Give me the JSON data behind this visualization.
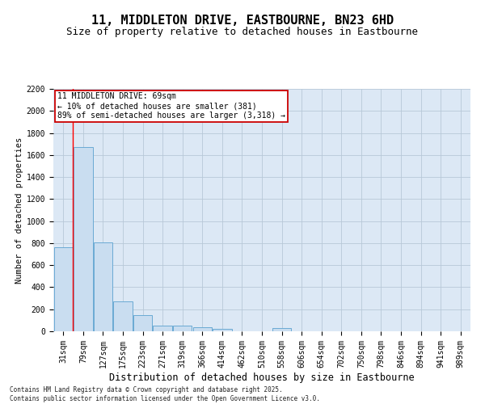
{
  "title": "11, MIDDLETON DRIVE, EASTBOURNE, BN23 6HD",
  "subtitle": "Size of property relative to detached houses in Eastbourne",
  "xlabel": "Distribution of detached houses by size in Eastbourne",
  "ylabel": "Number of detached properties",
  "categories": [
    "31sqm",
    "79sqm",
    "127sqm",
    "175sqm",
    "223sqm",
    "271sqm",
    "319sqm",
    "366sqm",
    "414sqm",
    "462sqm",
    "510sqm",
    "558sqm",
    "606sqm",
    "654sqm",
    "702sqm",
    "750sqm",
    "798sqm",
    "846sqm",
    "894sqm",
    "941sqm",
    "989sqm"
  ],
  "values": [
    760,
    1670,
    810,
    275,
    150,
    55,
    50,
    40,
    25,
    0,
    0,
    30,
    0,
    0,
    0,
    0,
    0,
    0,
    0,
    0,
    0
  ],
  "bar_color": "#c9ddf0",
  "bar_edge_color": "#6aaad4",
  "plot_bg_color": "#dce8f5",
  "background_color": "#ffffff",
  "grid_color": "#b8c8d8",
  "annotation_text": "11 MIDDLETON DRIVE: 69sqm\n← 10% of detached houses are smaller (381)\n89% of semi-detached houses are larger (3,318) →",
  "annotation_box_color": "#cc0000",
  "vline_x": 0.47,
  "ylim": [
    0,
    2200
  ],
  "yticks": [
    0,
    200,
    400,
    600,
    800,
    1000,
    1200,
    1400,
    1600,
    1800,
    2000,
    2200
  ],
  "footer": "Contains HM Land Registry data © Crown copyright and database right 2025.\nContains public sector information licensed under the Open Government Licence v3.0.",
  "title_fontsize": 11,
  "subtitle_fontsize": 9,
  "ylabel_fontsize": 7.5,
  "xlabel_fontsize": 8.5,
  "tick_fontsize": 7,
  "annotation_fontsize": 7,
  "footer_fontsize": 5.5
}
